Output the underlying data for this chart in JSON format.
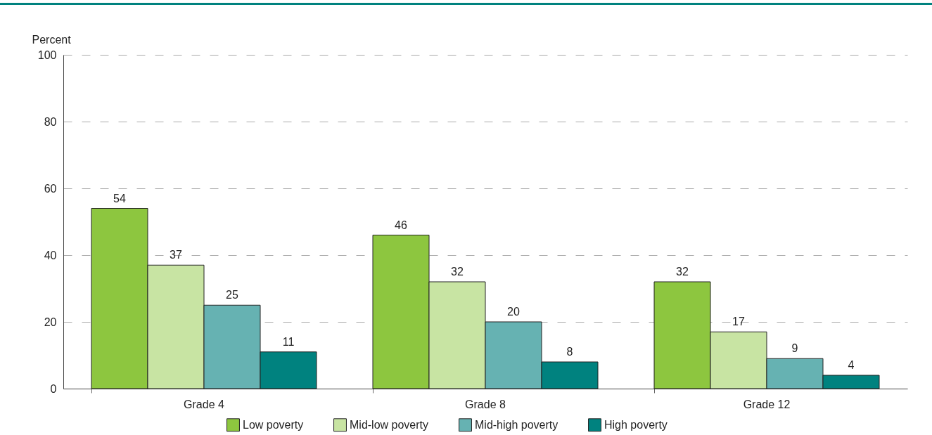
{
  "chart_data": {
    "type": "bar",
    "ylabel": "Percent",
    "categories": [
      "Grade 4",
      "Grade 8",
      "Grade 12"
    ],
    "series": [
      {
        "name": "Low poverty",
        "color": "#8dc63f",
        "values": [
          54,
          46,
          32
        ]
      },
      {
        "name": "Mid-low poverty",
        "color": "#c8e4a3",
        "values": [
          37,
          32,
          17
        ]
      },
      {
        "name": "Mid-high poverty",
        "color": "#66b2b2",
        "values": [
          25,
          20,
          9
        ]
      },
      {
        "name": "High poverty",
        "color": "#00827f",
        "values": [
          11,
          8,
          4
        ]
      }
    ],
    "ylim": [
      0,
      100
    ],
    "yticks": [
      0,
      20,
      40,
      60,
      80,
      100
    ],
    "grid": "y",
    "legend": "bottom",
    "data_labels": true
  }
}
